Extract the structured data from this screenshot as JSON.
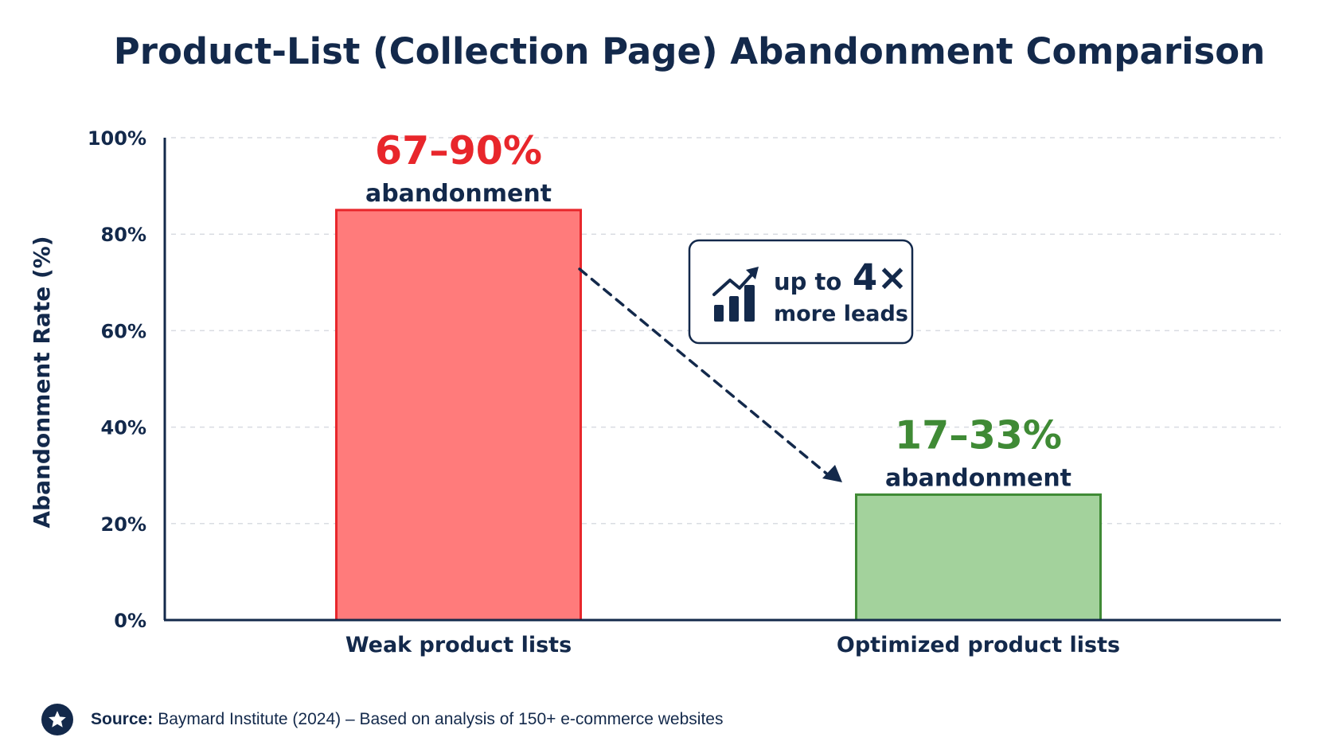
{
  "chart_data": {
    "type": "bar",
    "title": "Product-List (Collection Page) Abandonment Comparison",
    "ylabel": "Abandonment Rate (%)",
    "xlabel": "",
    "ylim": [
      0,
      100
    ],
    "yticks": [
      "0%",
      "20%",
      "40%",
      "60%",
      "80%",
      "100%"
    ],
    "ytick_values": [
      0,
      20,
      40,
      60,
      80,
      100
    ],
    "grid": "horizontal dashed",
    "categories": [
      "Weak product lists",
      "Optimized product lists"
    ],
    "values": [
      85,
      26
    ],
    "bar_colors": [
      "#ff7b7b",
      "#a3d29c"
    ],
    "bar_edge_colors": [
      "#e8262b",
      "#3f8a35"
    ],
    "data_labels": [
      {
        "value_text": "67–90%",
        "sub_text": "abandonment",
        "color": "#e8262b"
      },
      {
        "value_text": "17–33%",
        "sub_text": "abandonment",
        "color": "#3f8a35"
      }
    ],
    "annotation": {
      "line1_prefix": "up to",
      "line1_emphasis": "4×",
      "line2": "more leads",
      "icon": "bar-chart-trend-up-icon"
    }
  },
  "source": {
    "label": "Source:",
    "text": "Baymard Institute (2024) – Based on analysis of 150+ e-commerce websites",
    "icon": "star-icon"
  },
  "colors": {
    "navy": "#13294b",
    "grid": "#d9dce2"
  }
}
